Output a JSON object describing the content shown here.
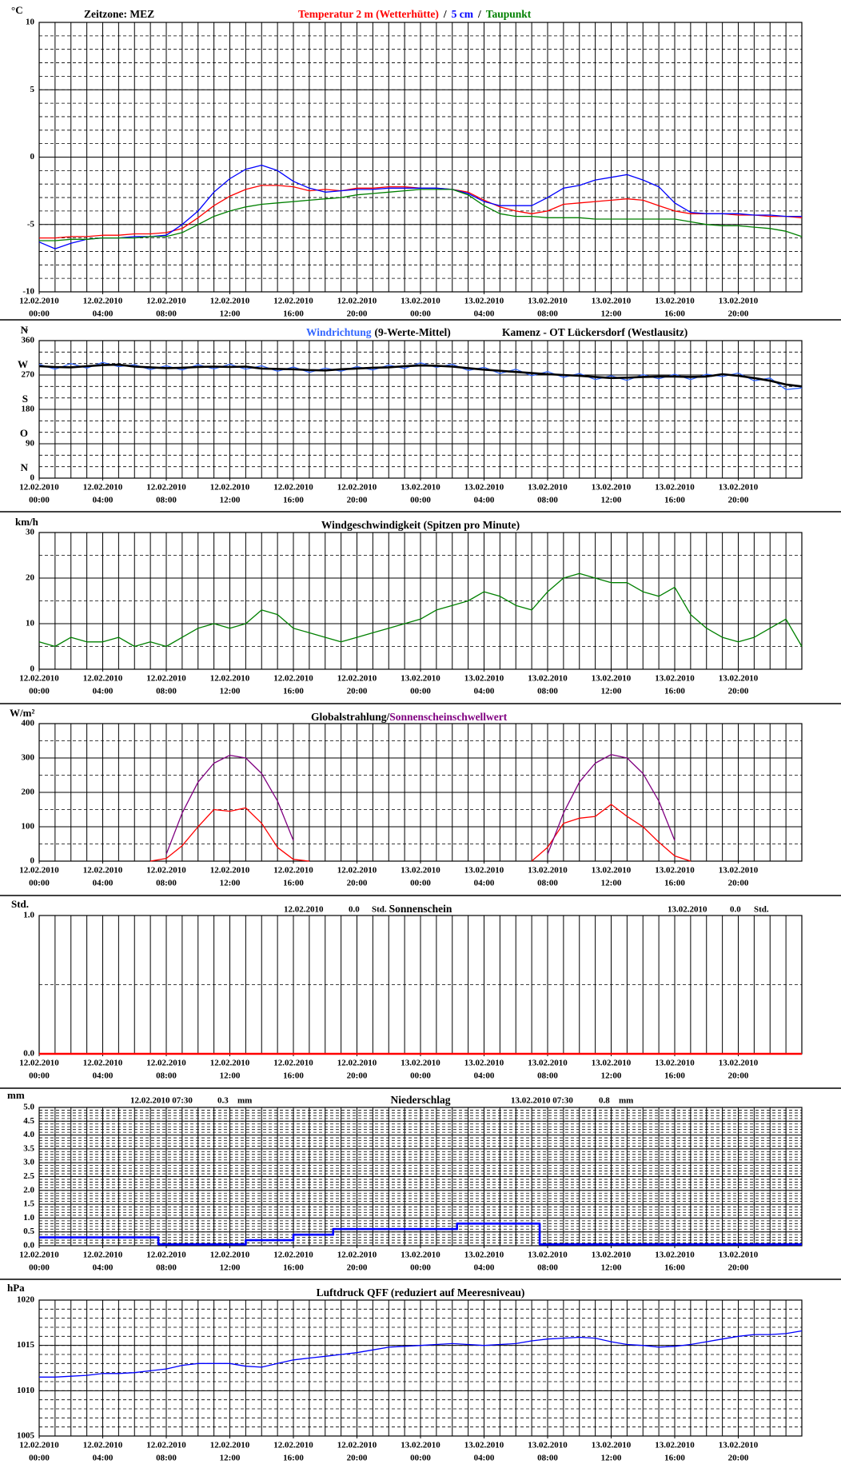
{
  "time_axis": {
    "xlim": [
      0,
      48
    ],
    "grid_step": 1,
    "hours": [
      0,
      1,
      2,
      3,
      4,
      5,
      6,
      7,
      8,
      9,
      10,
      11,
      12,
      13,
      14,
      15,
      16,
      17,
      18,
      19,
      20,
      21,
      22,
      23,
      24,
      25,
      26,
      27,
      28,
      29,
      30,
      31,
      32,
      33,
      34,
      35,
      36,
      37,
      38,
      39,
      40,
      41,
      42,
      43,
      44,
      45,
      46,
      47,
      48
    ],
    "ticks": [
      {
        "value": 0,
        "date": "12.02.2010",
        "time": "00:00"
      },
      {
        "value": 4,
        "date": "12.02.2010",
        "time": "04:00"
      },
      {
        "value": 8,
        "date": "12.02.2010",
        "time": "08:00"
      },
      {
        "value": 12,
        "date": "12.02.2010",
        "time": "12:00"
      },
      {
        "value": 16,
        "date": "12.02.2010",
        "time": "16:00"
      },
      {
        "value": 20,
        "date": "12.02.2010",
        "time": "20:00"
      },
      {
        "value": 24,
        "date": "13.02.2010",
        "time": "00:00"
      },
      {
        "value": 28,
        "date": "13.02.2010",
        "time": "04:00"
      },
      {
        "value": 32,
        "date": "13.02.2010",
        "time": "08:00"
      },
      {
        "value": 36,
        "date": "13.02.2010",
        "time": "12:00"
      },
      {
        "value": 40,
        "date": "13.02.2010",
        "time": "16:00"
      },
      {
        "value": 44,
        "date": "13.02.2010",
        "time": "20:00"
      }
    ]
  },
  "chart_data": [
    {
      "type": "line",
      "y_label": "°C",
      "annotations": [
        "Zeitzone: MEZ"
      ],
      "title_separator": "/",
      "ylim": [
        -10,
        10
      ],
      "yticks": [
        -10,
        -5,
        0,
        5,
        10
      ],
      "ygrid_minor_step": 1,
      "series": [
        {
          "name": "Temperatur 2 m (Wetterhütte)",
          "color": "#ff0000",
          "values": [
            -6.0,
            -6.0,
            -5.9,
            -5.9,
            -5.8,
            -5.8,
            -5.7,
            -5.7,
            -5.6,
            -5.3,
            -4.5,
            -3.6,
            -2.9,
            -2.4,
            -2.1,
            -2.1,
            -2.2,
            -2.5,
            -2.4,
            -2.5,
            -2.3,
            -2.3,
            -2.2,
            -2.2,
            -2.3,
            -2.3,
            -2.4,
            -2.6,
            -3.2,
            -3.7,
            -4.0,
            -4.2,
            -4.0,
            -3.5,
            -3.4,
            -3.3,
            -3.2,
            -3.1,
            -3.2,
            -3.6,
            -4.0,
            -4.2,
            -4.2,
            -4.2,
            -4.3,
            -4.3,
            -4.4,
            -4.4,
            -4.5
          ]
        },
        {
          "name": "5 cm",
          "color": "#0000ff",
          "values": [
            -6.3,
            -6.8,
            -6.4,
            -6.1,
            -6.0,
            -6.0,
            -5.9,
            -5.9,
            -5.8,
            -5.0,
            -4.0,
            -2.6,
            -1.6,
            -0.9,
            -0.6,
            -1.0,
            -1.8,
            -2.3,
            -2.6,
            -2.5,
            -2.4,
            -2.4,
            -2.3,
            -2.3,
            -2.3,
            -2.3,
            -2.4,
            -2.7,
            -3.3,
            -3.6,
            -3.6,
            -3.6,
            -3.0,
            -2.3,
            -2.1,
            -1.7,
            -1.5,
            -1.3,
            -1.7,
            -2.2,
            -3.4,
            -4.1,
            -4.2,
            -4.2,
            -4.2,
            -4.3,
            -4.3,
            -4.4,
            -4.4
          ]
        },
        {
          "name": "Taupunkt",
          "color": "#008000",
          "values": [
            -6.2,
            -6.2,
            -6.1,
            -6.1,
            -6.0,
            -6.0,
            -6.0,
            -5.9,
            -5.9,
            -5.6,
            -5.0,
            -4.4,
            -4.0,
            -3.7,
            -3.5,
            -3.4,
            -3.3,
            -3.2,
            -3.1,
            -3.0,
            -2.8,
            -2.7,
            -2.6,
            -2.5,
            -2.4,
            -2.4,
            -2.4,
            -2.8,
            -3.6,
            -4.2,
            -4.4,
            -4.4,
            -4.5,
            -4.5,
            -4.5,
            -4.6,
            -4.6,
            -4.6,
            -4.6,
            -4.6,
            -4.6,
            -4.8,
            -5.0,
            -5.1,
            -5.1,
            -5.2,
            -5.3,
            -5.5,
            -5.9
          ]
        }
      ]
    },
    {
      "type": "line",
      "y_label": "°",
      "annotations": [
        "(9-Werte-Mittel)",
        "Kamenz - OT Lückersdorf (Westlausitz)"
      ],
      "ylim": [
        0,
        360
      ],
      "yticks": [
        0,
        90,
        180,
        270,
        360
      ],
      "ygrid_minor_step": 30,
      "compass_labels": [
        {
          "value": 0,
          "label": "N"
        },
        {
          "value": 90,
          "label": "O"
        },
        {
          "value": 180,
          "label": "S"
        },
        {
          "value": 270,
          "label": "W"
        },
        {
          "value": 360,
          "label": "N"
        }
      ],
      "series": [
        {
          "name": "Windrichtung",
          "color": "#3366ff",
          "values": [
            298,
            285,
            300,
            288,
            303,
            292,
            297,
            284,
            294,
            283,
            297,
            286,
            298,
            285,
            294,
            280,
            291,
            277,
            288,
            280,
            292,
            283,
            296,
            287,
            302,
            290,
            298,
            282,
            290,
            274,
            285,
            268,
            279,
            264,
            274,
            258,
            268,
            256,
            271,
            260,
            272,
            258,
            272,
            266,
            275,
            255,
            262,
            232,
            236
          ]
        },
        {
          "color": "#000000",
          "values": [
            293,
            291,
            290,
            293,
            296,
            297,
            292,
            290,
            288,
            289,
            291,
            292,
            291,
            292,
            287,
            286,
            285,
            283,
            282,
            285,
            287,
            289,
            290,
            293,
            295,
            294,
            292,
            288,
            284,
            281,
            278,
            275,
            272,
            270,
            268,
            265,
            262,
            263,
            265,
            266,
            266,
            265,
            266,
            272,
            268,
            262,
            255,
            245,
            240
          ]
        }
      ]
    },
    {
      "type": "line",
      "y_label": "km/h",
      "title": "Windgeschwindigkeit (Spitzen pro Minute)",
      "ylim": [
        0,
        30
      ],
      "yticks": [
        0,
        10,
        20,
        30
      ],
      "ygrid_minor_step": 5,
      "series": [
        {
          "color": "#008000",
          "values": [
            6,
            5,
            7,
            6,
            6,
            7,
            5,
            6,
            5,
            7,
            9,
            10,
            9,
            10,
            13,
            12,
            9,
            8,
            7,
            6,
            7,
            8,
            9,
            10,
            11,
            13,
            14,
            15,
            17,
            16,
            14,
            13,
            17,
            20,
            21,
            20,
            19,
            19,
            17,
            16,
            18,
            12,
            9,
            7,
            6,
            7,
            9,
            11,
            5
          ]
        }
      ]
    },
    {
      "type": "line",
      "y_label": "W/m²",
      "ylim": [
        0,
        400
      ],
      "yticks": [
        0,
        100,
        200,
        300,
        400
      ],
      "ygrid_minor_step": 50,
      "series": [
        {
          "name": "Globalstrahlung/",
          "color": "#ff0000",
          "values": [
            null,
            null,
            null,
            null,
            null,
            null,
            null,
            0,
            8,
            45,
            100,
            150,
            145,
            155,
            110,
            40,
            5,
            0,
            null,
            null,
            null,
            null,
            null,
            null,
            null,
            null,
            null,
            null,
            null,
            null,
            null,
            0,
            40,
            110,
            125,
            130,
            165,
            130,
            100,
            55,
            15,
            0,
            null,
            null,
            null,
            null,
            null,
            null,
            null
          ]
        },
        {
          "name": "Sonnenscheinschwellwert",
          "color": "#800080",
          "values": [
            null,
            null,
            null,
            null,
            null,
            null,
            null,
            null,
            20,
            140,
            230,
            285,
            308,
            300,
            255,
            175,
            60,
            null,
            null,
            null,
            null,
            null,
            null,
            null,
            null,
            null,
            null,
            null,
            null,
            null,
            null,
            null,
            20,
            140,
            230,
            285,
            310,
            300,
            255,
            175,
            60,
            null,
            null,
            null,
            null,
            null,
            null,
            null,
            null
          ]
        }
      ]
    },
    {
      "type": "line",
      "y_label": "Std.",
      "title": "Sonnenschein",
      "annotations": [
        "12.02.2010",
        "0.0",
        "Std.",
        "13.02.2010",
        "0.0",
        "Std."
      ],
      "ylim": [
        0,
        1
      ],
      "yticks": [
        {
          "value": 0,
          "label": "0.0"
        },
        {
          "value": 1,
          "label": "1.0"
        }
      ],
      "ygrid_minor_step": 0.5,
      "series": [
        {
          "color": "#ff0000",
          "x": [
            0,
            48
          ],
          "values": [
            0,
            0
          ]
        }
      ]
    },
    {
      "type": "line",
      "y_label": "mm",
      "title": "Niederschlag",
      "annotations": [
        "12.02.2010 07:30",
        "0.3",
        "mm",
        "13.02.2010 07:30",
        "0.8",
        "mm"
      ],
      "ylim": [
        0,
        5
      ],
      "yticks": [
        {
          "value": 0,
          "label": "0.0"
        },
        {
          "value": 0.5,
          "label": "0.5"
        },
        {
          "value": 1,
          "label": "1.0"
        },
        {
          "value": 1.5,
          "label": "1.5"
        },
        {
          "value": 2,
          "label": "2.0"
        },
        {
          "value": 2.5,
          "label": "2.5"
        },
        {
          "value": 3,
          "label": "3.0"
        },
        {
          "value": 3.5,
          "label": "3.5"
        },
        {
          "value": 4,
          "label": "4.0"
        },
        {
          "value": 4.5,
          "label": "4.5"
        },
        {
          "value": 5,
          "label": "5.0"
        }
      ],
      "ygrid_minor_step": 0.1,
      "series": [
        {
          "color": "#0000ff",
          "x": [
            0,
            7.5,
            7.5,
            13,
            13,
            16,
            16,
            18.5,
            18.5,
            26.3,
            26.3,
            31.5,
            31.5,
            48
          ],
          "values": [
            0.3,
            0.3,
            0.05,
            0.05,
            0.2,
            0.2,
            0.4,
            0.4,
            0.6,
            0.6,
            0.8,
            0.8,
            0.05,
            0.05
          ]
        }
      ]
    },
    {
      "type": "line",
      "y_label": "hPa",
      "title": "Luftdruck QFF (reduziert auf Meeresniveau)",
      "ylim": [
        1005,
        1020
      ],
      "yticks": [
        1005,
        1010,
        1015,
        1020
      ],
      "ygrid_minor_step": 1,
      "series": [
        {
          "color": "#0000ff",
          "values": [
            1011.5,
            1011.5,
            1011.6,
            1011.7,
            1011.9,
            1011.9,
            1012.0,
            1012.2,
            1012.4,
            1012.8,
            1013.0,
            1013.0,
            1013.0,
            1012.7,
            1012.6,
            1013.0,
            1013.4,
            1013.6,
            1013.8,
            1014.0,
            1014.2,
            1014.5,
            1014.8,
            1014.9,
            1015.0,
            1015.1,
            1015.2,
            1015.1,
            1015.0,
            1015.1,
            1015.2,
            1015.5,
            1015.7,
            1015.8,
            1015.9,
            1015.8,
            1015.4,
            1015.1,
            1015.0,
            1014.8,
            1014.9,
            1015.1,
            1015.4,
            1015.7,
            1016.0,
            1016.2,
            1016.2,
            1016.3,
            1016.6
          ]
        }
      ]
    }
  ]
}
